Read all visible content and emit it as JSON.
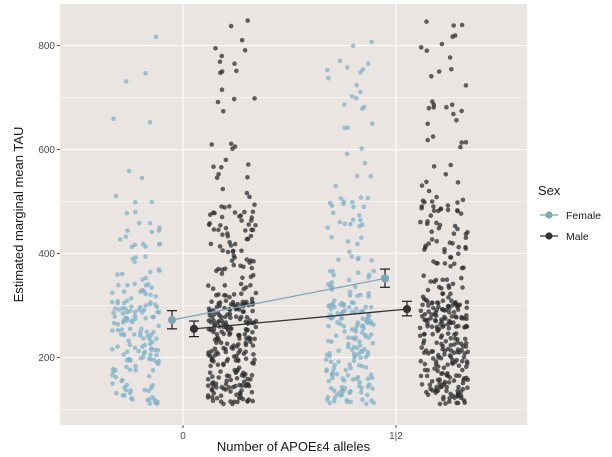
{
  "chart_data": {
    "type": "scatter",
    "title": "",
    "xlabel": "Number of APOEε4 alleles",
    "ylabel": "Estimated marginal mean TAU",
    "x_tick_labels": [
      "0",
      "1|2"
    ],
    "y_ticks": [
      200,
      400,
      600,
      800
    ],
    "ylim": [
      70,
      880
    ],
    "grid": true,
    "legend": {
      "title": "Sex",
      "placement": "right",
      "entries": [
        "Female",
        "Male"
      ]
    },
    "colors": {
      "Female": "#7fb2c7",
      "Male": "#2f2f2f",
      "panel": "#ebe5e2",
      "grid": "#ffffff"
    },
    "series": [
      {
        "name": "Female",
        "estimated_marginal_means": [
          {
            "x": "0",
            "mean": 272,
            "lower": 255,
            "upper": 290
          },
          {
            "x": "1|2",
            "mean": 352,
            "lower": 335,
            "upper": 370
          }
        ],
        "raw_points": {
          "group_0_count": 180,
          "group_1_count": 230,
          "range": [
            100,
            830
          ]
        }
      },
      {
        "name": "Male",
        "estimated_marginal_means": [
          {
            "x": "0",
            "mean": 255,
            "lower": 240,
            "upper": 270
          },
          {
            "x": "1|2",
            "mean": 293,
            "lower": 280,
            "upper": 308
          }
        ],
        "raw_points": {
          "group_0_count": 330,
          "group_1_count": 330,
          "range": [
            100,
            850
          ]
        }
      }
    ]
  }
}
